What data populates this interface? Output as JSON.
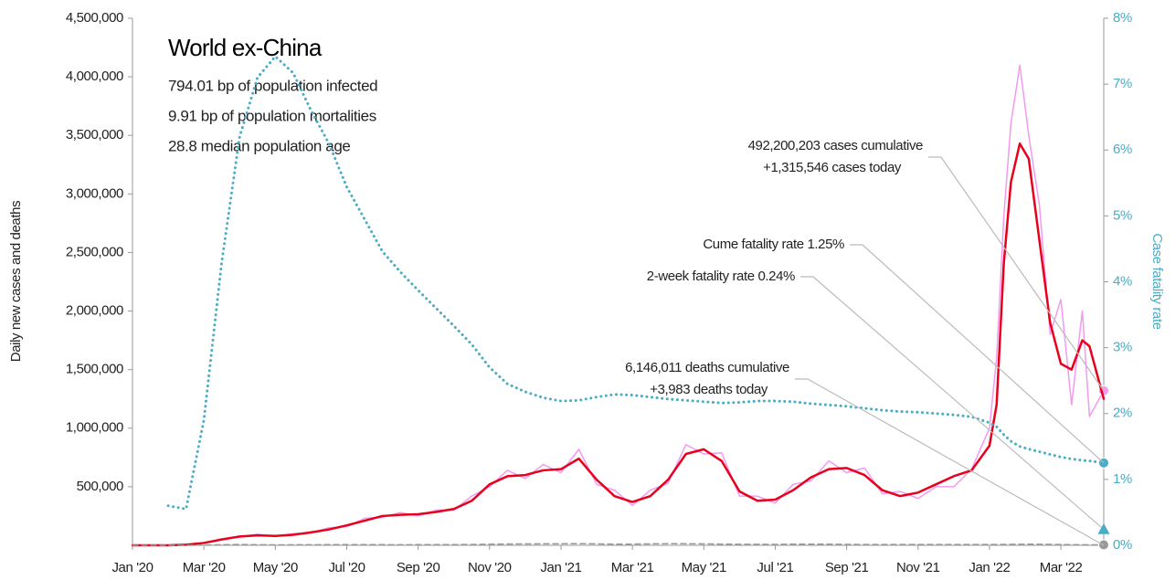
{
  "chart_data": {
    "type": "line",
    "title": "World ex-China",
    "subtitle": [
      "794.01 bp of population infected",
      "9.91 bp of population mortalities",
      "28.8 median population age"
    ],
    "ylabel": "Daily new cases and deaths",
    "y2label": "Case fatality rate",
    "x": [
      0,
      1,
      1.5,
      2,
      2.5,
      3,
      3.5,
      4,
      4.5,
      5,
      5.5,
      6,
      6.5,
      7,
      7.5,
      8,
      8.5,
      9,
      9.5,
      10,
      10.5,
      11,
      11.5,
      12,
      12.5,
      13,
      13.5,
      14,
      14.5,
      15,
      15.5,
      16,
      16.5,
      17,
      17.5,
      18,
      18.5,
      19,
      19.5,
      20,
      20.5,
      21,
      21.5,
      22,
      22.5,
      23,
      23.5,
      24,
      24.2,
      24.4,
      24.6,
      24.85,
      25.1,
      25.4,
      25.7,
      26,
      26.3,
      26.6,
      26.8,
      27.2
    ],
    "xlim": [
      0,
      27.2
    ],
    "xticks": [
      {
        "value": 0,
        "label": "Jan '20"
      },
      {
        "value": 2,
        "label": "Mar '20"
      },
      {
        "value": 4,
        "label": "May '20"
      },
      {
        "value": 6,
        "label": "Jul '20"
      },
      {
        "value": 8,
        "label": "Sep '20"
      },
      {
        "value": 10,
        "label": "Nov '20"
      },
      {
        "value": 12,
        "label": "Jan '21"
      },
      {
        "value": 14,
        "label": "Mar '21"
      },
      {
        "value": 16,
        "label": "May '21"
      },
      {
        "value": 18,
        "label": "Jul '21"
      },
      {
        "value": 20,
        "label": "Sep '21"
      },
      {
        "value": 22,
        "label": "Nov '21"
      },
      {
        "value": 24,
        "label": "Jan '22"
      },
      {
        "value": 26,
        "label": "Mar '22"
      }
    ],
    "ylim": [
      0,
      4500000
    ],
    "yticks": [
      {
        "value": 500000,
        "label": "500,000"
      },
      {
        "value": 1000000,
        "label": "1,000,000"
      },
      {
        "value": 1500000,
        "label": "1,500,000"
      },
      {
        "value": 2000000,
        "label": "2,000,000"
      },
      {
        "value": 2500000,
        "label": "2,500,000"
      },
      {
        "value": 3000000,
        "label": "3,000,000"
      },
      {
        "value": 3500000,
        "label": "3,500,000"
      },
      {
        "value": 4000000,
        "label": "4,000,000"
      },
      {
        "value": 4500000,
        "label": "4,500,000"
      }
    ],
    "y2lim": [
      0,
      8
    ],
    "y2ticks": [
      {
        "value": 0,
        "label": "0%"
      },
      {
        "value": 1,
        "label": "1%"
      },
      {
        "value": 2,
        "label": "2%"
      },
      {
        "value": 3,
        "label": "3%"
      },
      {
        "value": 4,
        "label": "4%"
      },
      {
        "value": 5,
        "label": "5%"
      },
      {
        "value": 6,
        "label": "6%"
      },
      {
        "value": 7,
        "label": "7%"
      },
      {
        "value": 8,
        "label": "8%"
      }
    ],
    "grid": false,
    "series": [
      {
        "color": "#f29af0",
        "style": "solid",
        "width": 1.5,
        "end_marker": "circle",
        "values": [
          0,
          0,
          6000,
          18000,
          55000,
          70000,
          95000,
          75000,
          100000,
          105000,
          150000,
          160000,
          230000,
          240000,
          280000,
          250000,
          300000,
          300000,
          420000,
          500000,
          640000,
          570000,
          690000,
          620000,
          820000,
          520000,
          470000,
          340000,
          470000,
          530000,
          860000,
          780000,
          790000,
          420000,
          420000,
          360000,
          520000,
          550000,
          720000,
          620000,
          660000,
          440000,
          460000,
          400000,
          500000,
          500000,
          650000,
          1000000,
          1600000,
          2800000,
          3600000,
          4100000,
          3500000,
          2900000,
          1800000,
          2100000,
          1200000,
          2000000,
          1100000,
          1320000
        ]
      },
      {
        "color": "#e8001c",
        "style": "solid",
        "width": 2.5,
        "values": [
          0,
          0,
          5000,
          20000,
          50000,
          75000,
          85000,
          80000,
          90000,
          110000,
          135000,
          170000,
          210000,
          250000,
          260000,
          265000,
          285000,
          310000,
          380000,
          520000,
          590000,
          600000,
          640000,
          650000,
          740000,
          560000,
          420000,
          370000,
          420000,
          560000,
          780000,
          820000,
          720000,
          460000,
          380000,
          390000,
          470000,
          580000,
          650000,
          660000,
          600000,
          470000,
          420000,
          450000,
          520000,
          590000,
          640000,
          850000,
          1200000,
          2400000,
          3100000,
          3430000,
          3300000,
          2600000,
          1900000,
          1550000,
          1500000,
          1750000,
          1700000,
          1250000
        ]
      },
      {
        "color": "#999999",
        "style": "dashed",
        "width": 1.5,
        "end_marker": "circle",
        "values": [
          0,
          0,
          100,
          1000,
          5000,
          7000,
          5000,
          4000,
          4500,
          5000,
          5500,
          5500,
          5500,
          5500,
          5000,
          5500,
          5500,
          6000,
          7000,
          9000,
          11000,
          11500,
          12500,
          13000,
          14000,
          12000,
          10000,
          10000,
          12000,
          13500,
          13000,
          12000,
          10000,
          9000,
          8500,
          8000,
          9500,
          10000,
          9500,
          8000,
          7000,
          7000,
          7000,
          7000,
          7000,
          7000,
          6800,
          6800,
          7000,
          7500,
          8000,
          9000,
          9500,
          9000,
          8000,
          6500,
          5500,
          4500,
          4000,
          4000
        ]
      },
      {
        "color": "#4bacc6",
        "style": "dotted",
        "width": 3,
        "axis": "y2",
        "end_marker": "circle",
        "values": [
          null,
          0.6,
          0.55,
          1.9,
          4.3,
          6.2,
          7.1,
          7.42,
          7.17,
          6.6,
          6.1,
          5.44,
          4.95,
          4.46,
          4.15,
          3.87,
          3.6,
          3.33,
          3.05,
          2.7,
          2.45,
          2.33,
          2.24,
          2.19,
          2.2,
          2.25,
          2.29,
          2.28,
          2.25,
          2.22,
          2.2,
          2.18,
          2.16,
          2.17,
          2.19,
          2.19,
          2.18,
          2.15,
          2.13,
          2.11,
          2.08,
          2.05,
          2.03,
          2.02,
          2.0,
          1.98,
          1.95,
          1.86,
          1.8,
          1.68,
          1.58,
          1.5,
          1.46,
          1.42,
          1.38,
          1.34,
          1.31,
          1.29,
          1.28,
          1.25
        ]
      }
    ],
    "annotations": [
      {
        "text": [
          "492,200,203 cases cumulative",
          "+1,315,546 cases today"
        ],
        "value": 1320000
      },
      {
        "text": [
          "Cume fatality rate 1.25%"
        ],
        "value": 1.25,
        "axis": "y2"
      },
      {
        "text": [
          "2-week fatality rate 0.24%"
        ],
        "value": 0.24,
        "axis": "y2",
        "marker": "triangle"
      },
      {
        "text": [
          "6,146,011 deaths cumulative",
          "+3,983 deaths today"
        ],
        "value": 0
      }
    ]
  }
}
